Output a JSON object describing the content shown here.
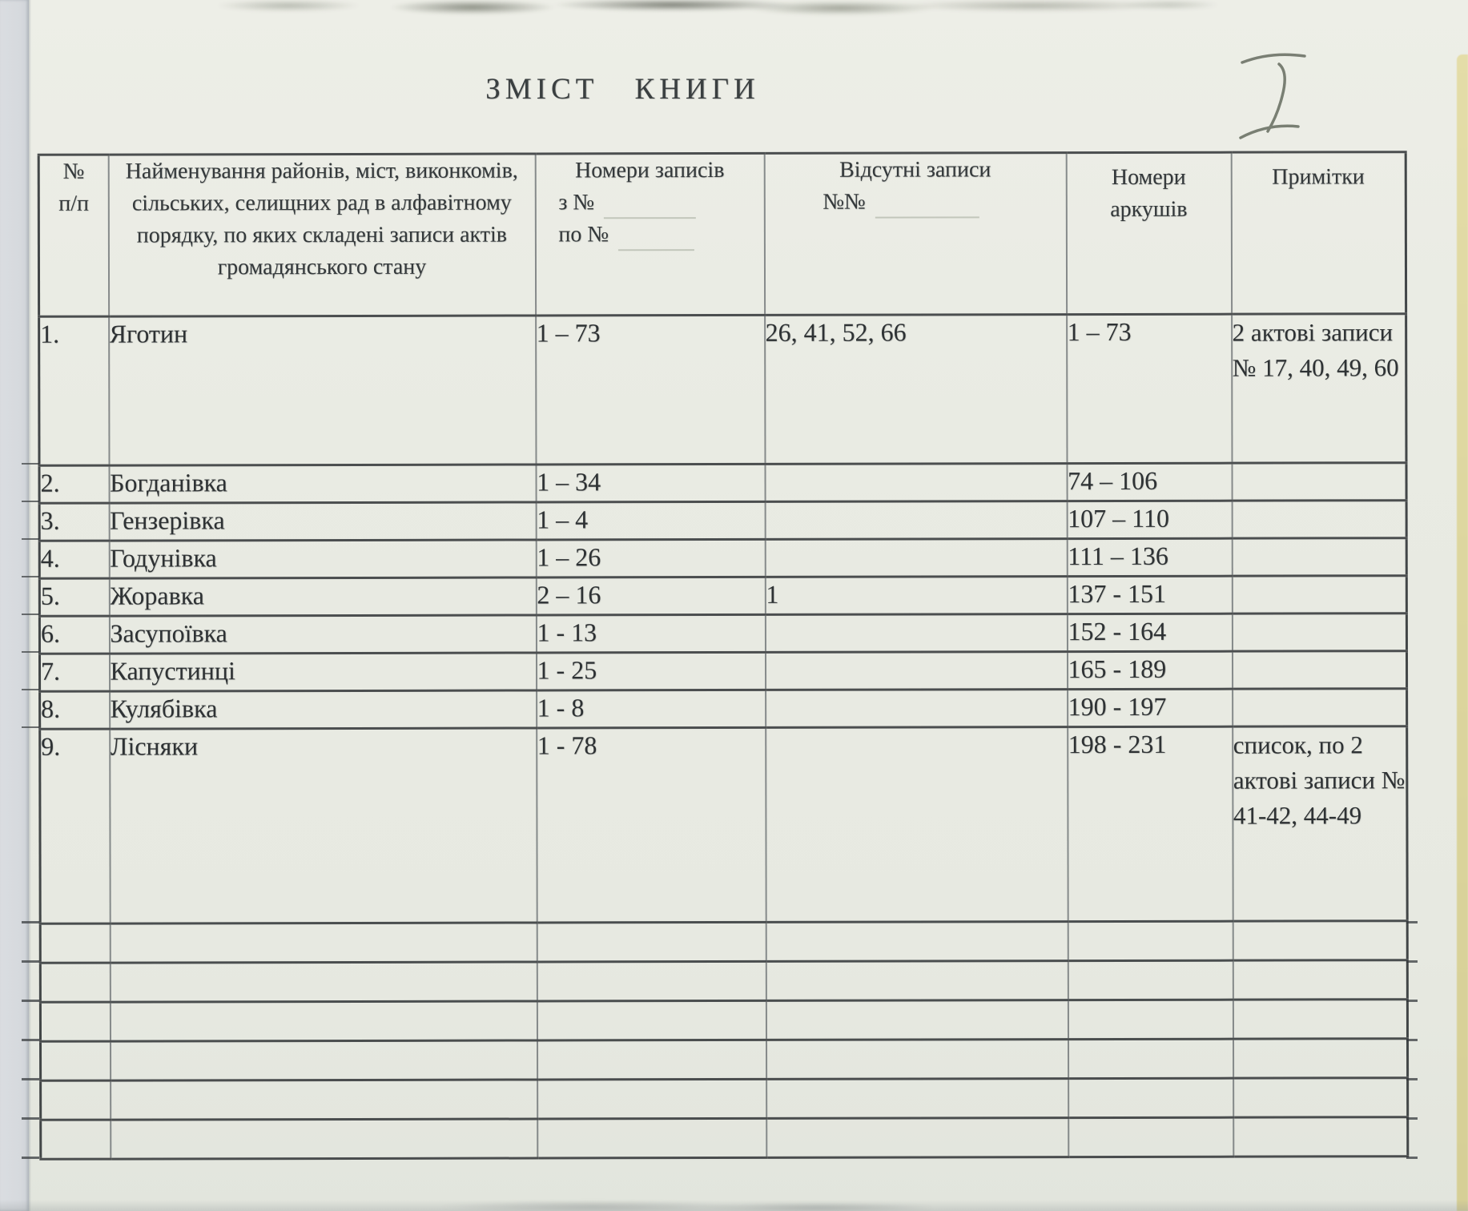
{
  "page": {
    "title": "ЗМІСТ КНИГИ",
    "handwritten_numeral": "I"
  },
  "colors": {
    "paper": "#e9ebe3",
    "ink": "#2e3234",
    "rule": "#43474a",
    "pencil": "#666c60",
    "edge_strip": "#ded7a0"
  },
  "table": {
    "header": {
      "col_num_line1": "№",
      "col_num_line2": "п/п",
      "col_name": "Найменування районів, міст, виконкомів, сільських, селищних рад в алфавітному порядку, по яких складені записи актів громадянського стану",
      "col_records_title": "Номери записів",
      "col_records_from_prefix": "з №",
      "col_records_to_prefix": "по №",
      "col_missing_title": "Відсутні записи",
      "col_missing_prefix": "№№",
      "col_sheets": "Номери аркушів",
      "col_notes": "Примітки"
    },
    "rows": [
      {
        "num": "1.",
        "name": "Яготин",
        "records": "1 – 73",
        "missing": "26, 41, 52, 66",
        "sheets": "1 – 73",
        "notes": "2 актові записи № 17, 40, 49, 60"
      },
      {
        "num": "2.",
        "name": "Богданівка",
        "records": "1 – 34",
        "missing": "",
        "sheets": "74 – 106",
        "notes": ""
      },
      {
        "num": "3.",
        "name": "Гензерівка",
        "records": "1 – 4",
        "missing": "",
        "sheets": "107 – 110",
        "notes": ""
      },
      {
        "num": "4.",
        "name": "Годунівка",
        "records": "1 – 26",
        "missing": "",
        "sheets": "111 – 136",
        "notes": ""
      },
      {
        "num": "5.",
        "name": "Жоравка",
        "records": "2 – 16",
        "missing": "1",
        "sheets": "137 - 151",
        "notes": ""
      },
      {
        "num": "6.",
        "name": "Засупоївка",
        "records": "1 - 13",
        "missing": "",
        "sheets": "152 - 164",
        "notes": ""
      },
      {
        "num": "7.",
        "name": "Капустинці",
        "records": "1 - 25",
        "missing": "",
        "sheets": "165 - 189",
        "notes": ""
      },
      {
        "num": "8.",
        "name": "Кулябівка",
        "records": "1 - 8",
        "missing": "",
        "sheets": "190 - 197",
        "notes": ""
      },
      {
        "num": "9.",
        "name": "Лісняки",
        "records": "1 - 78",
        "missing": "",
        "sheets": "198 - 231",
        "notes": "список, по 2 актові записи № 41-42, 44-49"
      }
    ],
    "empty_row_count": 6
  }
}
